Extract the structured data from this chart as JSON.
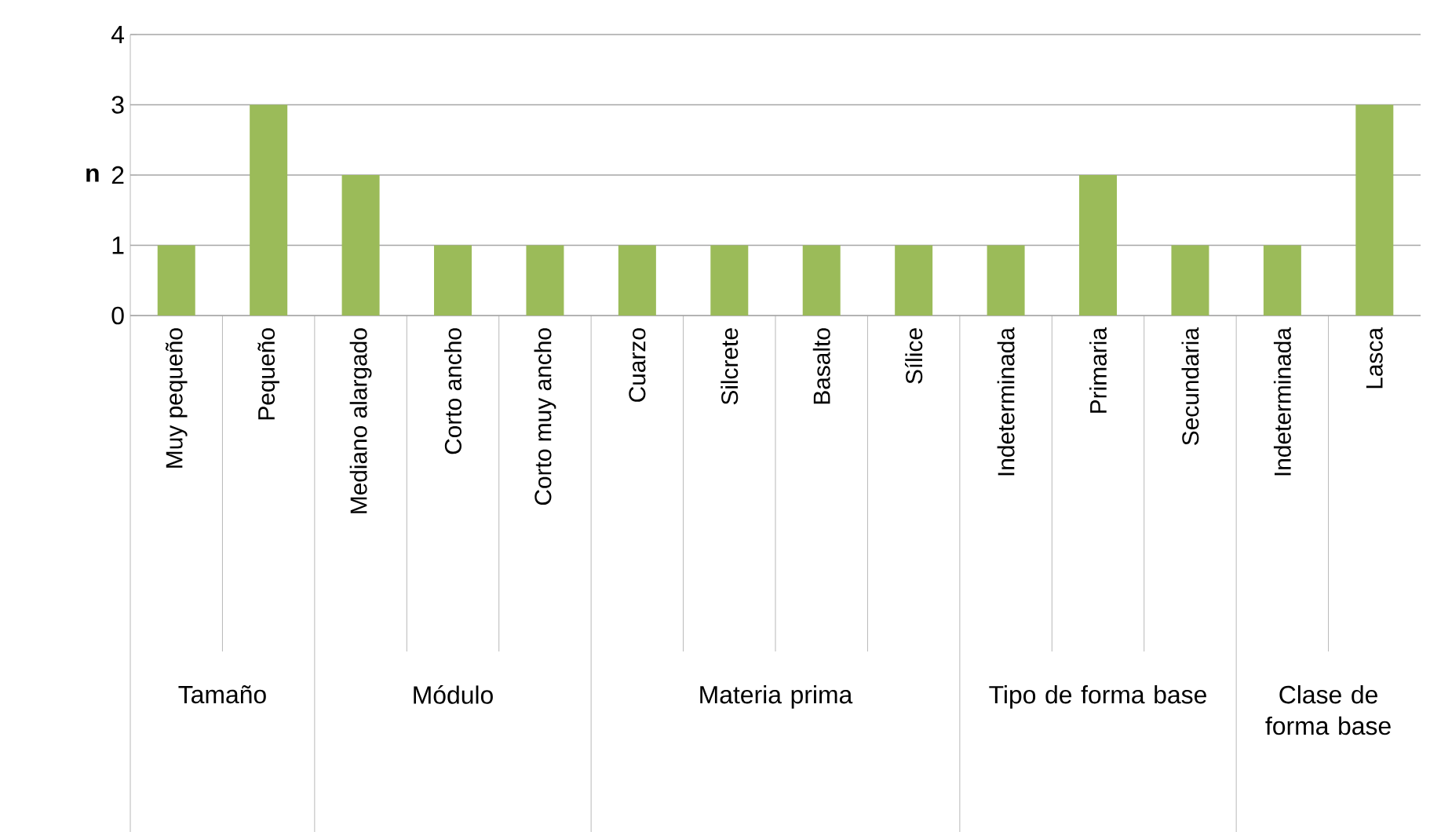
{
  "chart_data": {
    "type": "bar",
    "ylabel": "n",
    "categories": [
      "Muy pequeño",
      "Pequeño",
      "Mediano alargado",
      "Corto ancho",
      "Corto muy ancho",
      "Cuarzo",
      "Silcrete",
      "Basalto",
      "Sílice",
      "Indeterminada",
      "Primaria",
      "Secundaria",
      "Indeterminada",
      "Lasca"
    ],
    "values": [
      1,
      3,
      2,
      1,
      1,
      1,
      1,
      1,
      1,
      1,
      2,
      1,
      1,
      3
    ],
    "color": "#9bbb59",
    "ylim": [
      0,
      4
    ],
    "yticks": [
      0,
      1,
      2,
      3,
      4
    ],
    "grid": "y",
    "annotations": [
      "Tamaño",
      "Módulo",
      "Materia prima",
      "Tipo de forma base",
      "Clase de forma base"
    ]
  }
}
